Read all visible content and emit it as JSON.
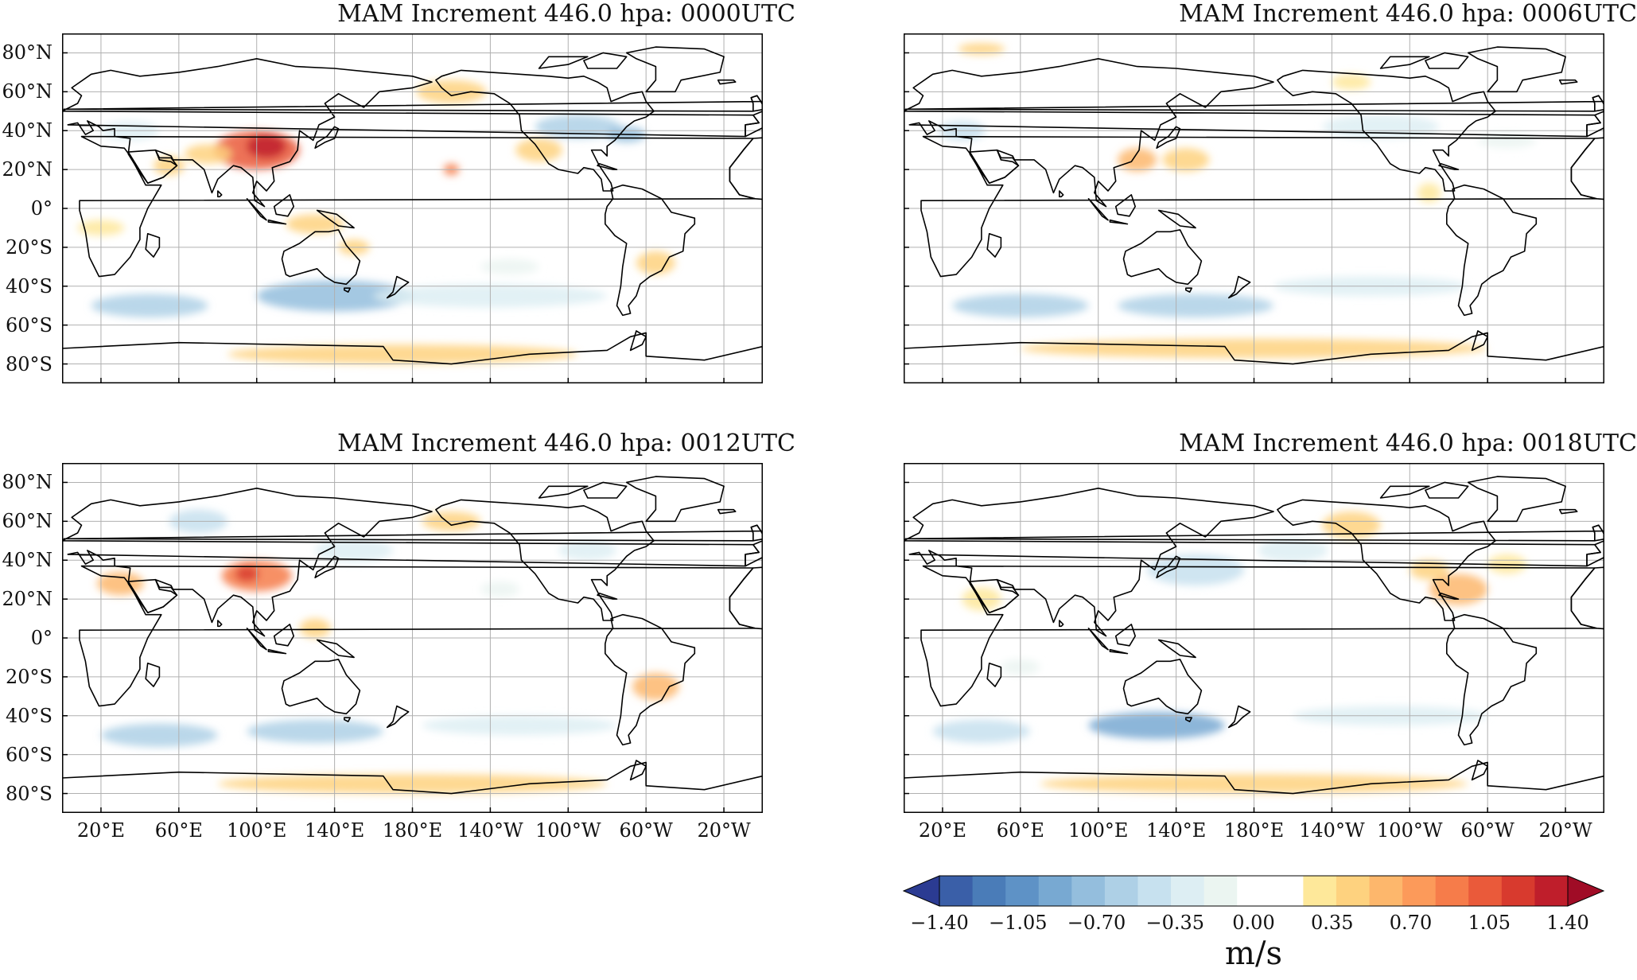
{
  "panels": [
    {
      "title": "MAM Increment 446.0 hpa:  0000UTC",
      "show_lat_labels": true,
      "show_lon_labels": false,
      "pattern": 0
    },
    {
      "title": "MAM Increment 446.0 hpa:  0006UTC",
      "show_lat_labels": false,
      "show_lon_labels": false,
      "pattern": 1
    },
    {
      "title": "MAM Increment 446.0 hpa:  0012UTC",
      "show_lat_labels": true,
      "show_lon_labels": true,
      "pattern": 2
    },
    {
      "title": "MAM Increment 446.0 hpa:  0018UTC",
      "show_lat_labels": false,
      "show_lon_labels": true,
      "pattern": 3
    }
  ],
  "lat_labels": [
    "80°N",
    "60°N",
    "40°N",
    "20°N",
    "0°",
    "20°S",
    "40°S",
    "60°S",
    "80°S"
  ],
  "lat_values": [
    80,
    60,
    40,
    20,
    0,
    -20,
    -40,
    -60,
    -80
  ],
  "lon_labels": [
    "20°E",
    "60°E",
    "100°E",
    "140°E",
    "180°E",
    "140°W",
    "100°W",
    "60°W",
    "20°W"
  ],
  "lon_values": [
    20,
    60,
    100,
    140,
    180,
    220,
    260,
    300,
    340
  ],
  "map_extent": {
    "lon_min": 0,
    "lon_max": 360,
    "lat_min": -90,
    "lat_max": 90
  },
  "colorbar": {
    "ticks": [
      "−1.40",
      "−1.05",
      "−0.70",
      "−0.35",
      "0.00",
      "0.35",
      "0.70",
      "1.05",
      "1.40"
    ],
    "tick_values": [
      -1.4,
      -1.05,
      -0.7,
      -0.35,
      0.0,
      0.35,
      0.7,
      1.05,
      1.4
    ],
    "units": "m/s",
    "range": [
      -1.4,
      1.4
    ],
    "colors": [
      "#2b3b92",
      "#3a5fa8",
      "#4a7cb8",
      "#5e92c6",
      "#78a9d2",
      "#94bedd",
      "#aed0e6",
      "#c7e1ef",
      "#ddeef3",
      "#ebf5f1",
      "#ffffff",
      "#ffffff",
      "#fee89a",
      "#fed27f",
      "#fdb76c",
      "#fc9a5a",
      "#f67c4a",
      "#ea5a3a",
      "#d83a2e",
      "#bf1e2b",
      "#a00c26"
    ]
  },
  "colors": {
    "frame": "#000000",
    "grid": "#b0b0b0",
    "coast": "#000000"
  }
}
